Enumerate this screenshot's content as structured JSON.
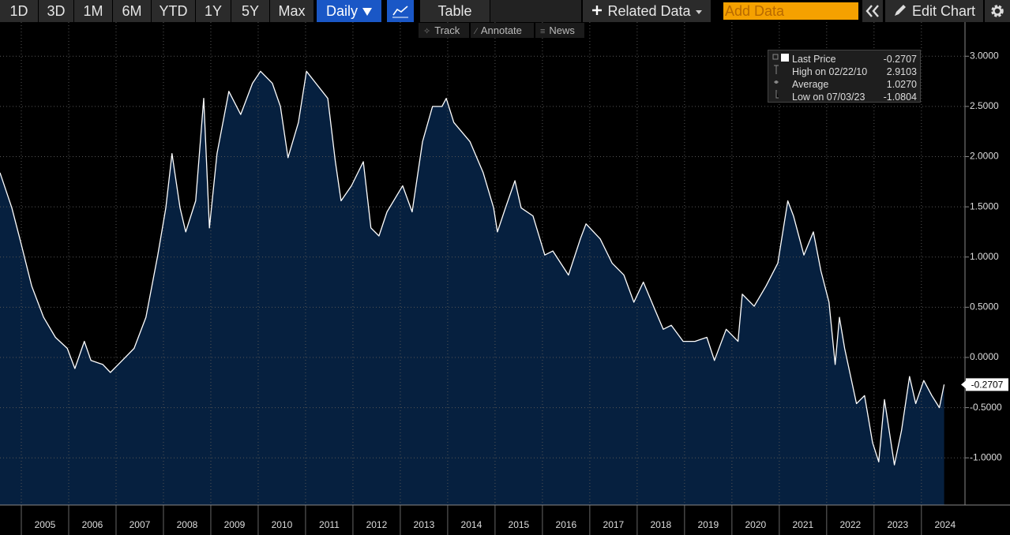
{
  "toolbar": {
    "ranges": [
      "1D",
      "3D",
      "1M",
      "6M",
      "YTD",
      "1Y",
      "5Y",
      "Max"
    ],
    "frequency": "Daily",
    "table": "Table",
    "related": "Related Data",
    "add_data": "Add Data",
    "edit": "Edit Chart",
    "tools": [
      "Track",
      "Annotate",
      "News"
    ]
  },
  "legend": [
    {
      "label": "Last Price",
      "value": "-0.2707"
    },
    {
      "label": "High on 02/22/10",
      "value": "2.9103"
    },
    {
      "label": "Average",
      "value": "1.0270"
    },
    {
      "label": "Low on 07/03/23",
      "value": "-1.0804"
    }
  ],
  "chart_data": {
    "type": "area",
    "color": "#ffffff",
    "fill": "#06203f",
    "grid": true,
    "last_value": -0.2707,
    "xlim": [
      2004.55,
      2024.92
    ],
    "ylim": [
      -1.47,
      3.34
    ],
    "xticks": [
      2005,
      2006,
      2007,
      2008,
      2009,
      2010,
      2011,
      2012,
      2013,
      2014,
      2015,
      2016,
      2017,
      2018,
      2019,
      2020,
      2021,
      2022,
      2023,
      2024
    ],
    "yticks": [
      {
        "value": 3,
        "label": "3.0000"
      },
      {
        "value": 2.5,
        "label": "2.5000"
      },
      {
        "value": 2,
        "label": "2.0000"
      },
      {
        "value": 1.5,
        "label": "1.5000"
      },
      {
        "value": 1,
        "label": "1.0000"
      },
      {
        "value": 0.5,
        "label": "0.5000"
      },
      {
        "value": 0,
        "label": "0.0000"
      },
      {
        "value": -0.5,
        "label": "-0.5000"
      },
      {
        "value": -1,
        "label": "-1.0000"
      }
    ],
    "x": [
      2004.55,
      2004.8,
      2004.97,
      2005.22,
      2005.47,
      2005.72,
      2005.97,
      2006.13,
      2006.33,
      2006.47,
      2006.72,
      2006.88,
      2007.13,
      2007.38,
      2007.63,
      2007.88,
      2008.05,
      2008.18,
      2008.35,
      2008.47,
      2008.68,
      2008.85,
      2008.97,
      2009.13,
      2009.38,
      2009.63,
      2009.88,
      2010.05,
      2010.3,
      2010.47,
      2010.63,
      2010.85,
      2011.02,
      2011.22,
      2011.47,
      2011.63,
      2011.75,
      2011.97,
      2012.22,
      2012.38,
      2012.55,
      2012.72,
      2013.05,
      2013.25,
      2013.47,
      2013.68,
      2013.88,
      2013.97,
      2014.13,
      2014.47,
      2014.75,
      2014.97,
      2015.05,
      2015.22,
      2015.42,
      2015.55,
      2015.8,
      2016.05,
      2016.22,
      2016.55,
      2016.8,
      2016.92,
      2017.22,
      2017.47,
      2017.72,
      2017.93,
      2018.13,
      2018.38,
      2018.55,
      2018.72,
      2018.97,
      2019.22,
      2019.47,
      2019.63,
      2019.88,
      2020.13,
      2020.22,
      2020.47,
      2020.72,
      2020.97,
      2021.18,
      2021.3,
      2021.52,
      2021.72,
      2021.88,
      2022.05,
      2022.18,
      2022.27,
      2022.38,
      2022.63,
      2022.8,
      2022.97,
      2023.1,
      2023.22,
      2023.43,
      2023.58,
      2023.75,
      2023.88,
      2024.05,
      2024.22,
      2024.38,
      2024.48
    ],
    "values": [
      1.84,
      1.49,
      1.18,
      0.71,
      0.4,
      0.2,
      0.09,
      -0.11,
      0.16,
      -0.03,
      -0.07,
      -0.15,
      -0.03,
      0.09,
      0.4,
      1.02,
      1.49,
      2.03,
      1.49,
      1.25,
      1.56,
      2.58,
      1.29,
      2.03,
      2.65,
      2.42,
      2.73,
      2.85,
      2.73,
      2.5,
      1.99,
      2.34,
      2.85,
      2.73,
      2.58,
      1.95,
      1.56,
      1.71,
      1.95,
      1.29,
      1.21,
      1.45,
      1.71,
      1.45,
      2.15,
      2.5,
      2.5,
      2.58,
      2.34,
      2.15,
      1.84,
      1.49,
      1.25,
      1.49,
      1.76,
      1.49,
      1.41,
      1.02,
      1.06,
      0.82,
      1.18,
      1.33,
      1.18,
      0.94,
      0.82,
      0.55,
      0.75,
      0.47,
      0.28,
      0.32,
      0.16,
      0.16,
      0.2,
      -0.03,
      0.28,
      0.16,
      0.63,
      0.51,
      0.71,
      0.94,
      1.56,
      1.41,
      1.02,
      1.25,
      0.86,
      0.55,
      -0.07,
      0.4,
      0.09,
      -0.46,
      -0.38,
      -0.85,
      -1.04,
      -0.42,
      -1.07,
      -0.73,
      -0.19,
      -0.46,
      -0.23,
      -0.38,
      -0.5,
      -0.27
    ]
  }
}
